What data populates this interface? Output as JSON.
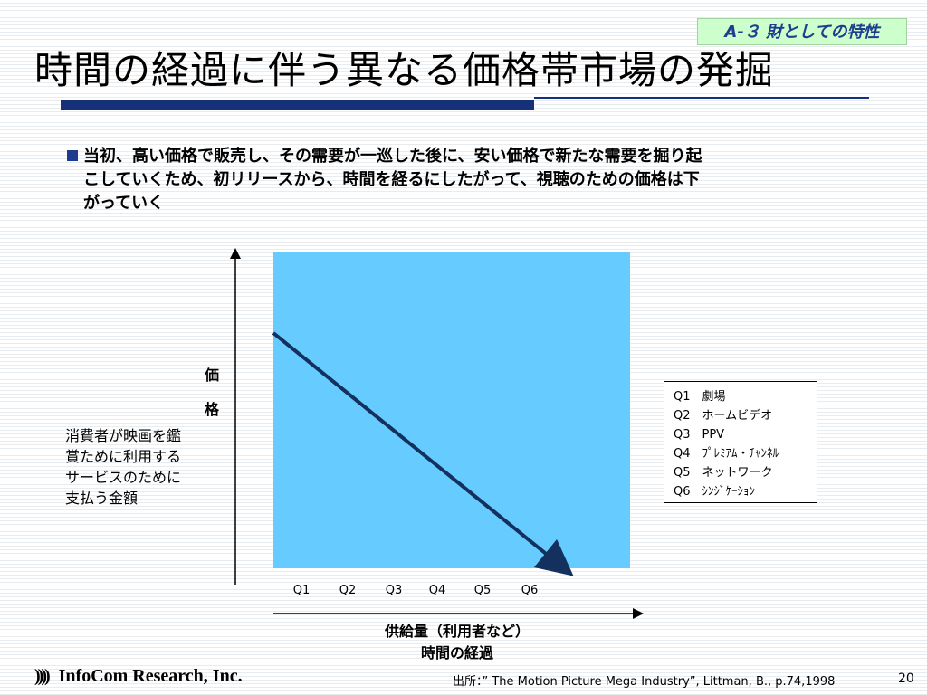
{
  "slide": {
    "tag": "A-３ 財としての特性",
    "title": "時間の経過に伴う異なる価格帯市場の発掘",
    "bullet_lines": [
      "当初、高い価格で販売し、その需要が一巡した後に、安い価格で新たな需要を掘り起",
      "こしていくため、初リリースから、時間を経るにしたがって、視聴のための価格は下",
      "がっていく"
    ]
  },
  "chart_data": {
    "type": "line",
    "y_label_chars": [
      "価",
      "格"
    ],
    "y_description_lines": [
      "消費者が映画を鑑",
      "賞ために利用する",
      "サービスのために",
      "支払う金額"
    ],
    "categories": [
      "Q1",
      "Q2",
      "Q3",
      "Q4",
      "Q5",
      "Q6"
    ],
    "x_label_lines": [
      "供給量（利用者など）",
      "時間の経過"
    ],
    "legend": [
      "Q1　劇場",
      "Q2　ホームビデオ",
      "Q3　PPV",
      "Q4　ﾌﾟﾚﾐｱﾑ・ﾁｬﾝﾈﾙ",
      "Q5　ネットワーク",
      "Q6　ｼﾝｼﾞｹｰｼｮﾝ"
    ],
    "colors": {
      "plot_bg": "#66ccff",
      "line": "#14305e"
    }
  },
  "footer": {
    "logo_mark": "))))",
    "company": "InfoCom Research, Inc.",
    "source": "出所：” The Motion Picture Mega Industry”, Littman, B., p.74,1998",
    "page": "20"
  }
}
